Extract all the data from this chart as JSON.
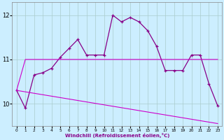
{
  "xlabel": "Windchill (Refroidissement éolien,°C)",
  "background_color": "#cceeff",
  "grid_color": "#aacccc",
  "line_color1": "#880088",
  "line_color2": "#cc00cc",
  "x_ticks": [
    0,
    1,
    2,
    3,
    4,
    5,
    6,
    7,
    8,
    9,
    10,
    11,
    12,
    13,
    14,
    15,
    16,
    17,
    18,
    19,
    20,
    21,
    22,
    23
  ],
  "ylim": [
    9.5,
    12.3
  ],
  "yticks": [
    10,
    11,
    12
  ],
  "series1_x": [
    0,
    1,
    2,
    3,
    4,
    5,
    6,
    7,
    8,
    9,
    10,
    11,
    12,
    13,
    14,
    15,
    16,
    17,
    18,
    19,
    20,
    21,
    22,
    23
  ],
  "series1_y": [
    10.3,
    9.9,
    10.65,
    10.7,
    10.8,
    11.05,
    11.25,
    11.45,
    11.1,
    11.1,
    11.1,
    12.0,
    11.85,
    11.95,
    11.85,
    11.65,
    11.3,
    10.75,
    10.75,
    10.75,
    11.1,
    11.1,
    10.45,
    9.95
  ],
  "series2_x": [
    0,
    1,
    23
  ],
  "series2_y": [
    10.3,
    11.0,
    11.0
  ],
  "series3_x": [
    0,
    23
  ],
  "series3_y": [
    10.3,
    9.55
  ]
}
